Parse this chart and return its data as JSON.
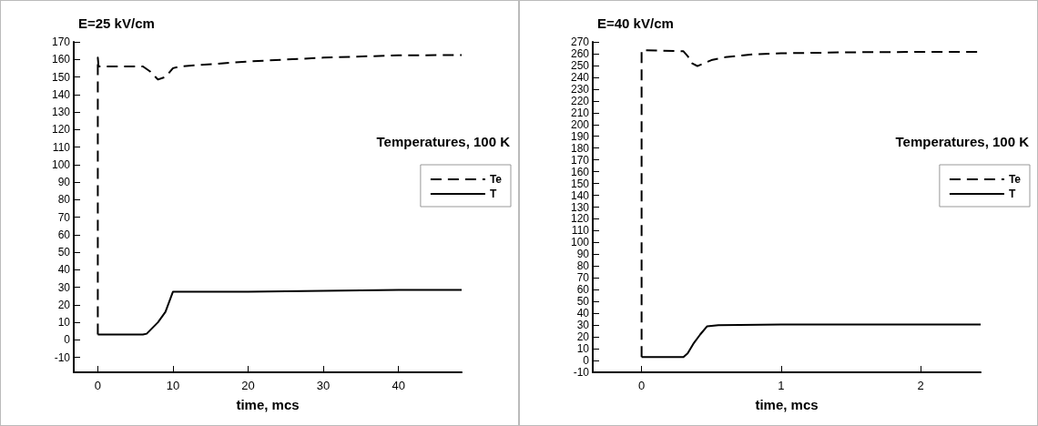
{
  "chart_data": [
    {
      "type": "line",
      "title": "E=25 kV/cm",
      "xlabel": "time, mcs",
      "legend_title": "Temperatures, 100 K",
      "legend": "right",
      "marker": "none",
      "grid": false,
      "xlim": [
        -3.2,
        48.4
      ],
      "xticks": [
        0,
        10,
        20,
        30,
        40
      ],
      "ylim": [
        -18.5,
        170
      ],
      "yticks": [
        -10,
        0,
        10,
        20,
        30,
        40,
        50,
        60,
        70,
        80,
        90,
        100,
        110,
        120,
        130,
        140,
        150,
        160,
        170
      ],
      "series": [
        {
          "name": "Te",
          "color": "#000000",
          "line_style": "dashed",
          "x": [
            0,
            0,
            0.1,
            6,
            7,
            8,
            9,
            10,
            11,
            20,
            30,
            40,
            48.4
          ],
          "values": [
            3,
            161,
            156,
            156,
            153,
            148.5,
            150,
            155,
            156,
            158.8,
            161,
            162.3,
            162.5
          ]
        },
        {
          "name": "T",
          "color": "#000000",
          "line_style": "solid",
          "x": [
            0,
            6,
            6.5,
            8,
            9,
            10,
            20,
            30,
            40,
            48.4
          ],
          "values": [
            3,
            3,
            3.5,
            10,
            16,
            27.5,
            27.5,
            28,
            28.5,
            28.5
          ]
        }
      ]
    },
    {
      "type": "line",
      "title": "E=40 kV/cm",
      "xlabel": "time, mcs",
      "legend_title": "Temperatures, 100 K",
      "legend": "right",
      "marker": "none",
      "grid": false,
      "xlim": [
        -0.35,
        2.43
      ],
      "xticks": [
        0,
        1,
        2
      ],
      "ylim": [
        -10,
        270
      ],
      "yticks": [
        -10,
        0,
        10,
        20,
        30,
        40,
        50,
        60,
        70,
        80,
        90,
        100,
        110,
        120,
        130,
        140,
        150,
        160,
        170,
        180,
        190,
        200,
        210,
        220,
        230,
        240,
        250,
        260,
        270
      ],
      "series": [
        {
          "name": "Te",
          "color": "#000000",
          "line_style": "dashed",
          "x": [
            0,
            0,
            0.3,
            0.33,
            0.36,
            0.4,
            0.45,
            0.5,
            0.6,
            0.8,
            1,
            1.5,
            2,
            2.43
          ],
          "values": [
            3,
            263,
            262,
            258,
            252,
            249.5,
            252,
            254.5,
            257,
            259.5,
            260.3,
            261.2,
            261.5,
            261.5
          ]
        },
        {
          "name": "T",
          "color": "#000000",
          "line_style": "solid",
          "x": [
            0,
            0.3,
            0.33,
            0.37,
            0.42,
            0.47,
            0.55,
            1,
            2.43
          ],
          "values": [
            3,
            3,
            6,
            14,
            22,
            29,
            30,
            30.5,
            30.5
          ]
        }
      ]
    }
  ]
}
